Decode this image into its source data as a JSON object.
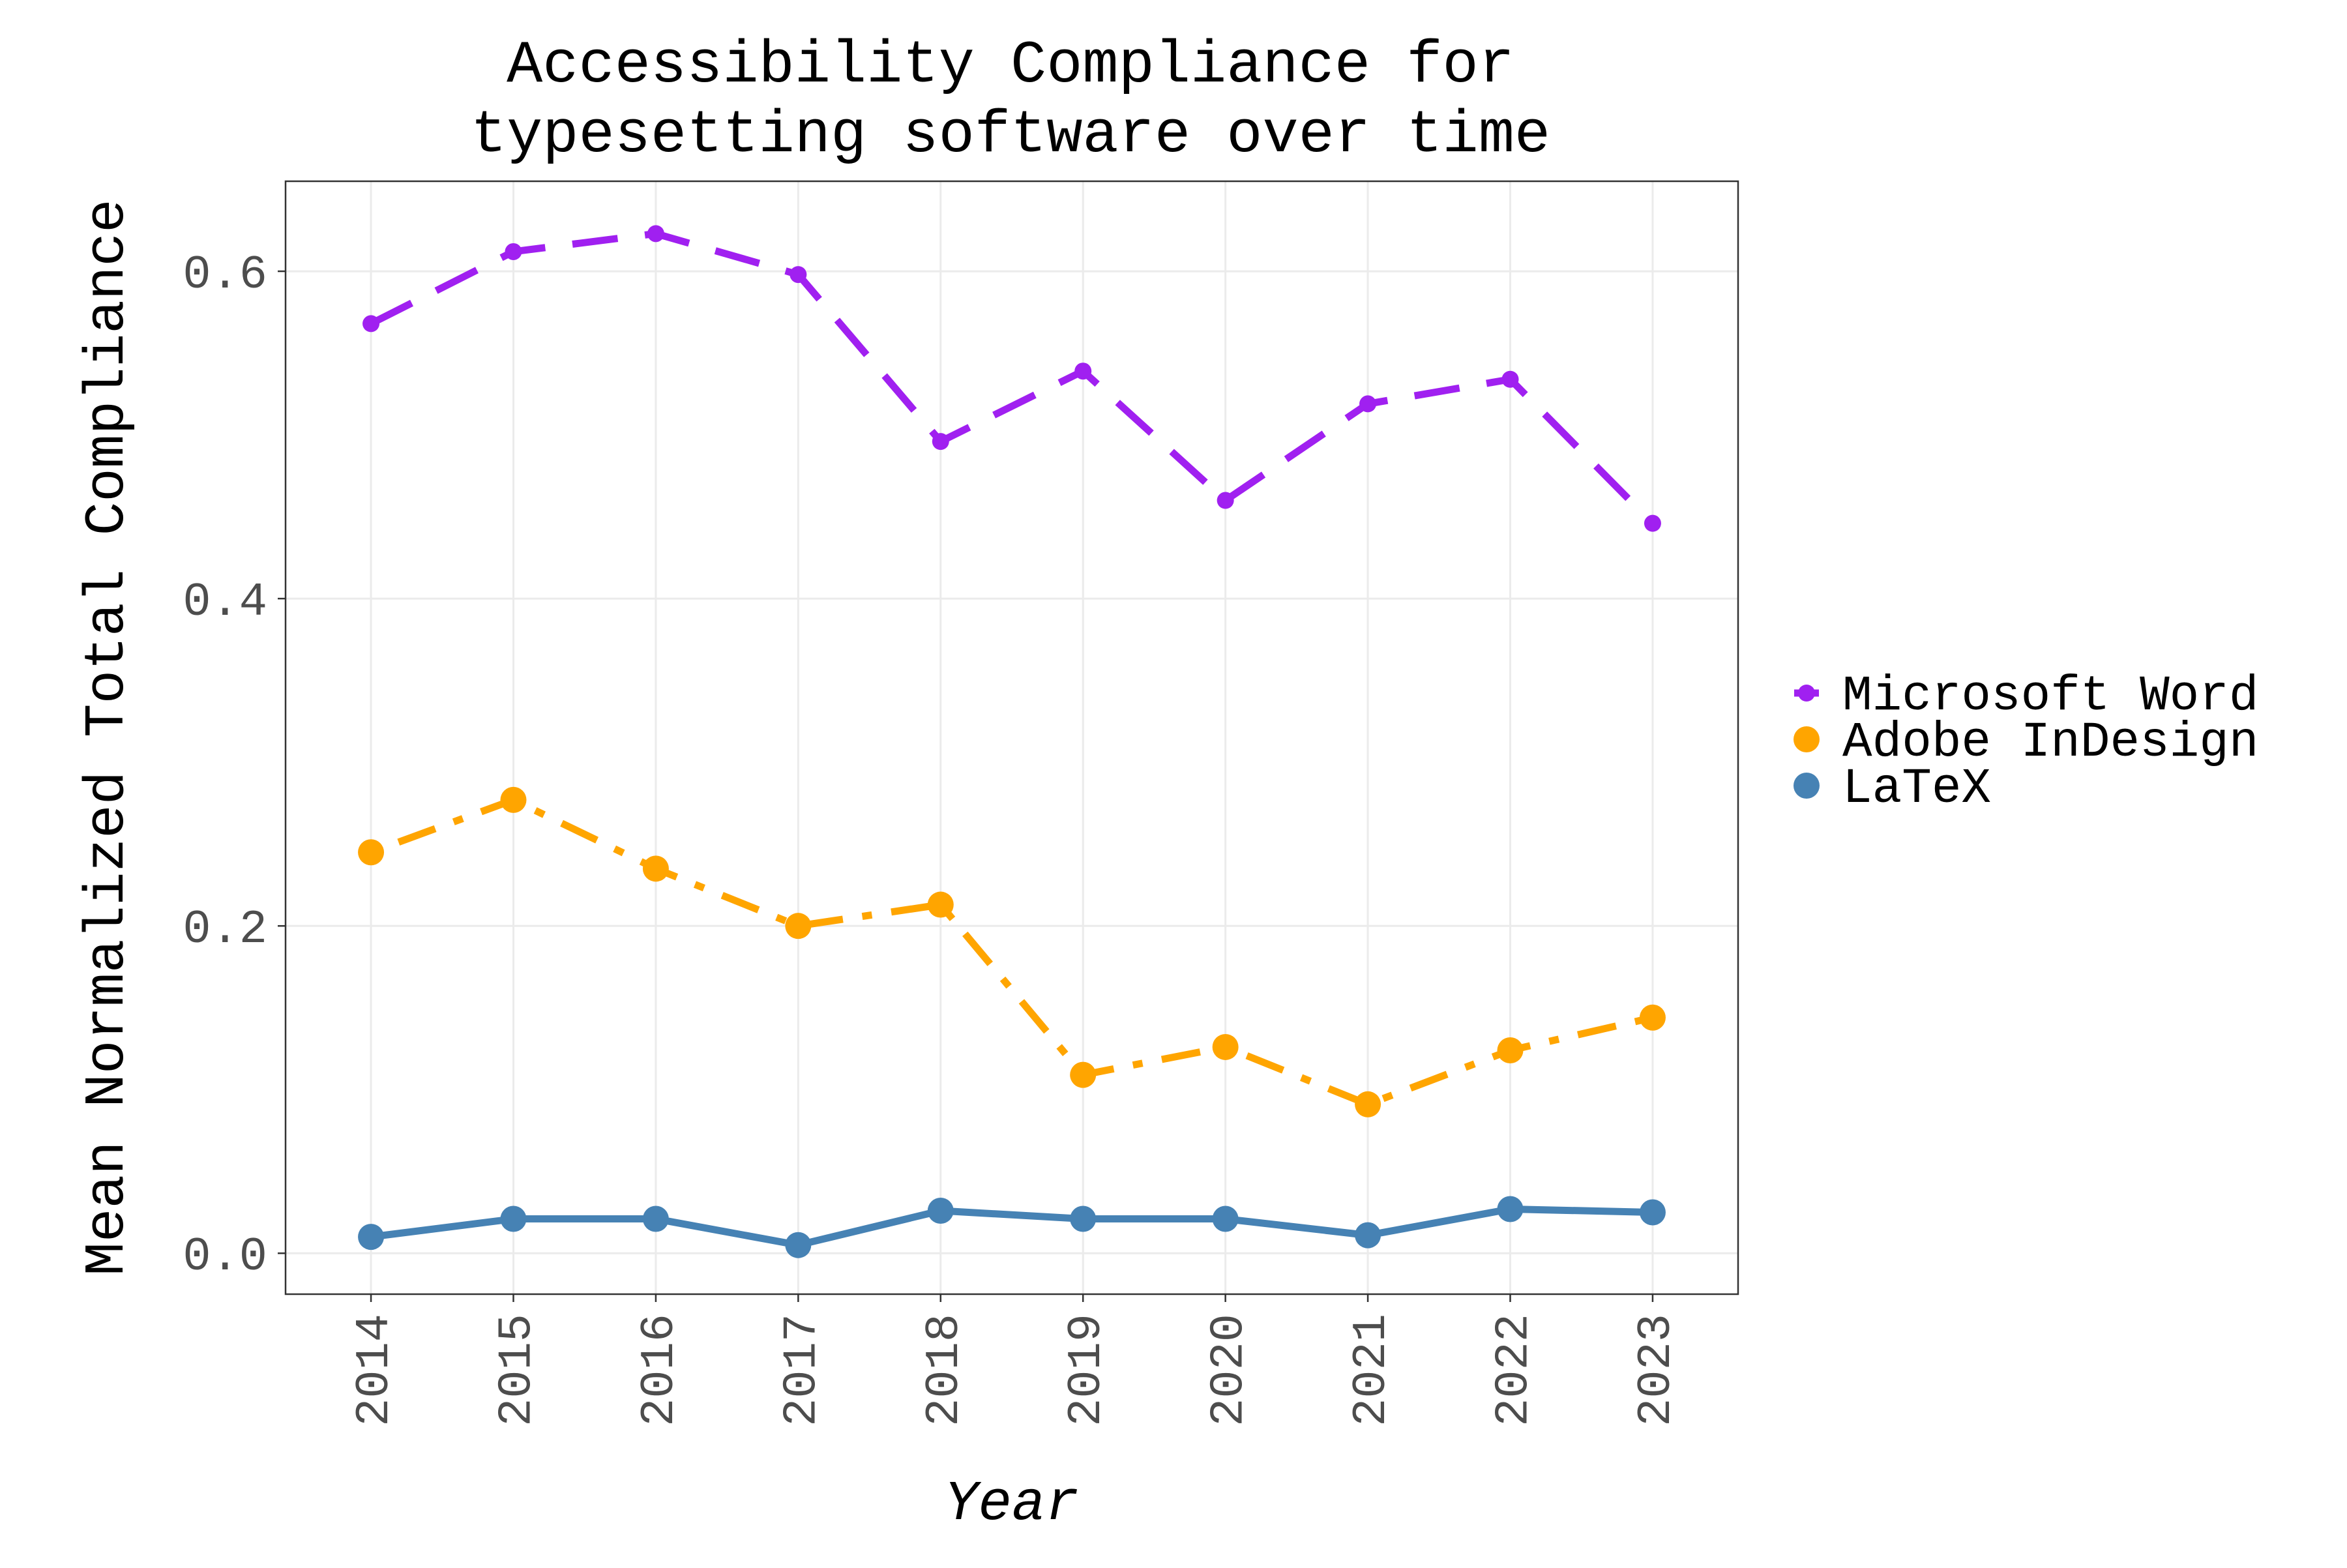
{
  "chart_data": {
    "type": "line",
    "title": [
      "Accessibility Compliance for",
      "typesetting software over time"
    ],
    "xlabel": "Year",
    "ylabel": "Mean Normalized Total Compliance",
    "x": [
      "2014",
      "2015",
      "2016",
      "2017",
      "2018",
      "2019",
      "2020",
      "2021",
      "2022",
      "2023"
    ],
    "ylim": [
      -0.025,
      0.655
    ],
    "yticks": [
      0.0,
      0.2,
      0.4,
      0.6
    ],
    "ytick_labels": [
      "0.0",
      "0.2",
      "0.4",
      "0.6"
    ],
    "grid": true,
    "legend_position": "right",
    "series": [
      {
        "name": "Microsoft Word",
        "color": "#a020f0",
        "line_style": "dashed",
        "values": [
          0.568,
          0.612,
          0.623,
          0.598,
          0.496,
          0.539,
          0.46,
          0.519,
          0.534,
          0.446
        ]
      },
      {
        "name": "Adobe InDesign",
        "color": "#ffa500",
        "line_style": "dotdash",
        "values": [
          0.245,
          0.277,
          0.235,
          0.2,
          0.213,
          0.109,
          0.126,
          0.091,
          0.124,
          0.144
        ]
      },
      {
        "name": "LaTeX",
        "color": "#4682b4",
        "line_style": "solid",
        "values": [
          0.01,
          0.021,
          0.021,
          0.005,
          0.026,
          0.021,
          0.021,
          0.011,
          0.027,
          0.025
        ]
      }
    ]
  }
}
